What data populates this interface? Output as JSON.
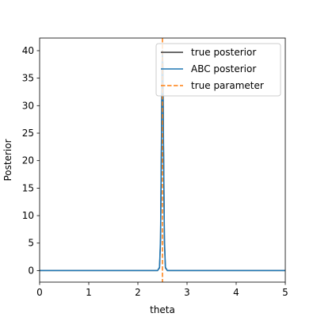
{
  "chart_data": {
    "type": "line",
    "xlabel": "theta",
    "ylabel": "Posterior",
    "xlim": [
      0,
      5
    ],
    "ylim": [
      -2.1,
      42.3
    ],
    "x_ticks": [
      0,
      1,
      2,
      3,
      4,
      5
    ],
    "y_ticks": [
      0,
      5,
      10,
      15,
      20,
      25,
      30,
      35,
      40
    ],
    "grid": false,
    "legend_position": "top-right",
    "series": [
      {
        "name": "true posterior",
        "style": "solid",
        "color": "#3a3a3a",
        "x": [
          0,
          2.4,
          2.44,
          2.46,
          2.48,
          2.49,
          2.5,
          2.51,
          2.52,
          2.54,
          2.56,
          2.6,
          5
        ],
        "y": [
          0,
          0,
          0.5,
          5,
          23,
          36,
          40,
          36,
          23,
          5,
          0.5,
          0,
          0
        ]
      },
      {
        "name": "ABC posterior",
        "style": "solid",
        "color": "#1f77b4",
        "x": [
          0,
          2.4,
          2.44,
          2.46,
          2.48,
          2.49,
          2.5,
          2.51,
          2.52,
          2.54,
          2.56,
          2.6,
          5
        ],
        "y": [
          0,
          0,
          0.6,
          6,
          25,
          37,
          40,
          37,
          25,
          6,
          0.6,
          0,
          0
        ]
      },
      {
        "name": "true parameter",
        "style": "dashed",
        "color": "#ff7f0e",
        "vertical_line_x": 2.5
      }
    ]
  }
}
